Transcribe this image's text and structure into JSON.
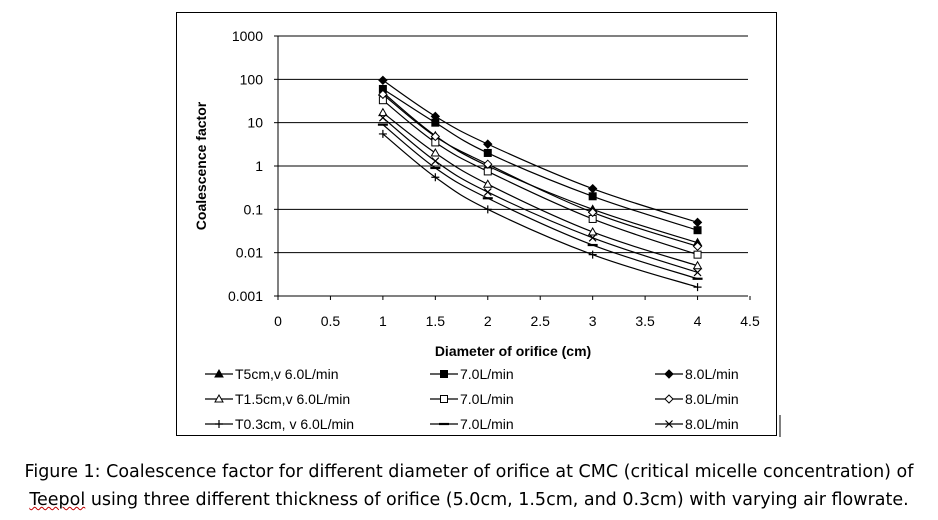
{
  "chart_data": {
    "type": "line",
    "yscale": "log",
    "xlabel": "Diameter of orifice (cm)",
    "ylabel": "Coalescence factor",
    "xlim": [
      0,
      4.5
    ],
    "ylim": [
      0.001,
      1000
    ],
    "xticks": [
      "0",
      "0.5",
      "1",
      "1.5",
      "2",
      "2.5",
      "3",
      "3.5",
      "4",
      "4.5"
    ],
    "yticks": [
      "1000",
      "100",
      "10",
      "1",
      "0.1",
      "0.01",
      "0.001"
    ],
    "grid": "horizontal",
    "legend_position": "bottom",
    "x": [
      1,
      1.5,
      2,
      3,
      4
    ],
    "series": [
      {
        "name": "T5cm,v 6.0L/min",
        "marker": "triangle-filled",
        "values": [
          50,
          5,
          1.0,
          0.1,
          0.017
        ]
      },
      {
        "name": "7.0L/min",
        "marker": "square-filled",
        "values": [
          60,
          10,
          2.0,
          0.2,
          0.033
        ]
      },
      {
        "name": "8.0L/min",
        "marker": "diamond-filled",
        "values": [
          95,
          14,
          3.2,
          0.3,
          0.05
        ]
      },
      {
        "name": "T1.5cm,v 6.0L/min",
        "marker": "triangle-open",
        "values": [
          17,
          2.0,
          0.38,
          0.03,
          0.005
        ]
      },
      {
        "name": "7.0L/min",
        "marker": "square-open",
        "values": [
          33,
          3.5,
          0.75,
          0.06,
          0.009
        ]
      },
      {
        "name": "8.0L/min",
        "marker": "diamond-open",
        "values": [
          45,
          4.8,
          1.1,
          0.085,
          0.014
        ]
      },
      {
        "name": "T0.3cm, v 6.0L/min",
        "marker": "plus",
        "values": [
          5.5,
          0.55,
          0.1,
          0.009,
          0.0016
        ]
      },
      {
        "name": "7.0L/min",
        "marker": "dash",
        "values": [
          9,
          0.9,
          0.18,
          0.015,
          0.0025
        ]
      },
      {
        "name": "8.0L/min",
        "marker": "cross",
        "values": [
          13,
          1.3,
          0.25,
          0.022,
          0.0035
        ]
      }
    ]
  },
  "caption": {
    "line1": "Figure 1: Coalescence factor for different diameter of orifice at CMC (critical micelle concentration) of",
    "line2_word": "Teepol",
    "line2_rest": " using three different thickness of orifice (5.0cm, 1.5cm, and 0.3cm) with varying air flowrate."
  }
}
